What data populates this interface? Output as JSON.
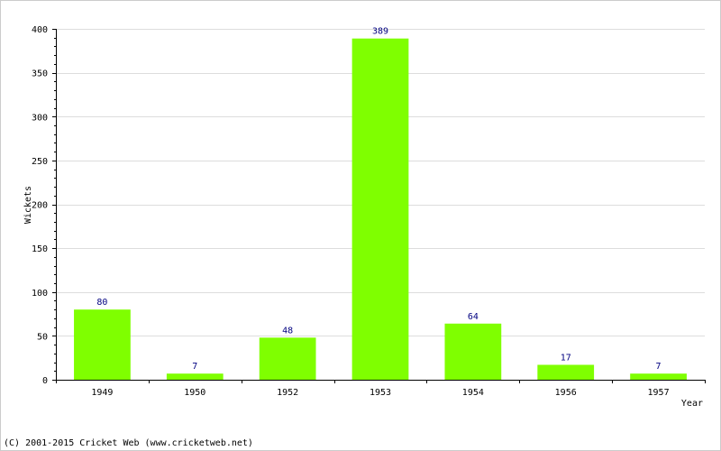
{
  "chart_data": {
    "type": "bar",
    "categories": [
      "1949",
      "1950",
      "1952",
      "1953",
      "1954",
      "1956",
      "1957"
    ],
    "values": [
      80,
      7,
      48,
      389,
      64,
      17,
      7
    ],
    "data_labels": [
      "80",
      "7",
      "48",
      "389",
      "64",
      "17",
      "7"
    ],
    "title": "",
    "xlabel": "Year",
    "ylabel": "Wickets",
    "ylim": [
      0,
      400
    ],
    "yticks": [
      0,
      50,
      100,
      150,
      200,
      250,
      300,
      350,
      400
    ],
    "grid": true,
    "legend": "none",
    "bar_color": "#7fff00",
    "label_color": "#000080"
  },
  "footer": "(C) 2001-2015 Cricket Web (www.cricketweb.net)"
}
